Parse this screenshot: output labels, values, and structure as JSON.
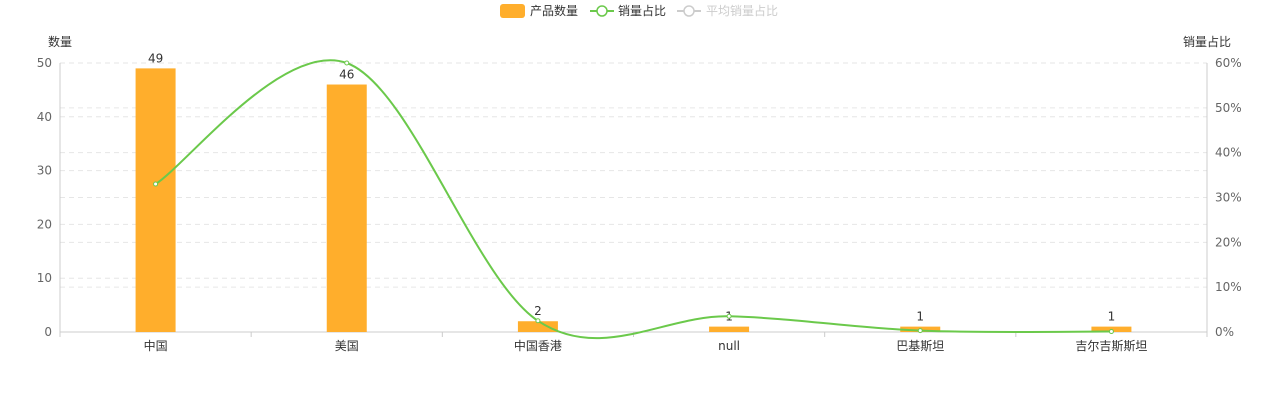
{
  "chart_data": {
    "type": "bar",
    "categories": [
      "中国",
      "美国",
      "中国香港",
      "null",
      "巴基斯坦",
      "吉尔吉斯斯坦"
    ],
    "series": [
      {
        "name": "产品数量",
        "type": "bar",
        "axis": "left",
        "values": [
          49,
          46,
          2,
          1,
          1,
          1
        ],
        "color": "#FFAE2C"
      },
      {
        "name": "销量占比",
        "type": "line",
        "axis": "right",
        "smooth": true,
        "values": [
          33,
          60,
          2.5,
          3.5,
          0.3,
          0.1
        ],
        "color": "#6BC94B"
      }
    ],
    "legend": [
      {
        "name": "产品数量",
        "marker": "bar",
        "color": "#FFAE2C",
        "active": true
      },
      {
        "name": "销量占比",
        "marker": "line",
        "color": "#6BC94B",
        "active": true
      },
      {
        "name": "平均销量占比",
        "marker": "line",
        "color": "#cccccc",
        "active": false
      }
    ],
    "legend_position": "top-center",
    "y_left": {
      "name": "数量",
      "min": 0,
      "max": 50,
      "ticks": [
        "0",
        "10",
        "20",
        "30",
        "40",
        "50"
      ]
    },
    "y_right": {
      "name": "销量占比",
      "min": 0,
      "max": 60,
      "ticks": [
        "0%",
        "10%",
        "20%",
        "30%",
        "40%",
        "50%",
        "60%"
      ]
    },
    "grid": true
  }
}
